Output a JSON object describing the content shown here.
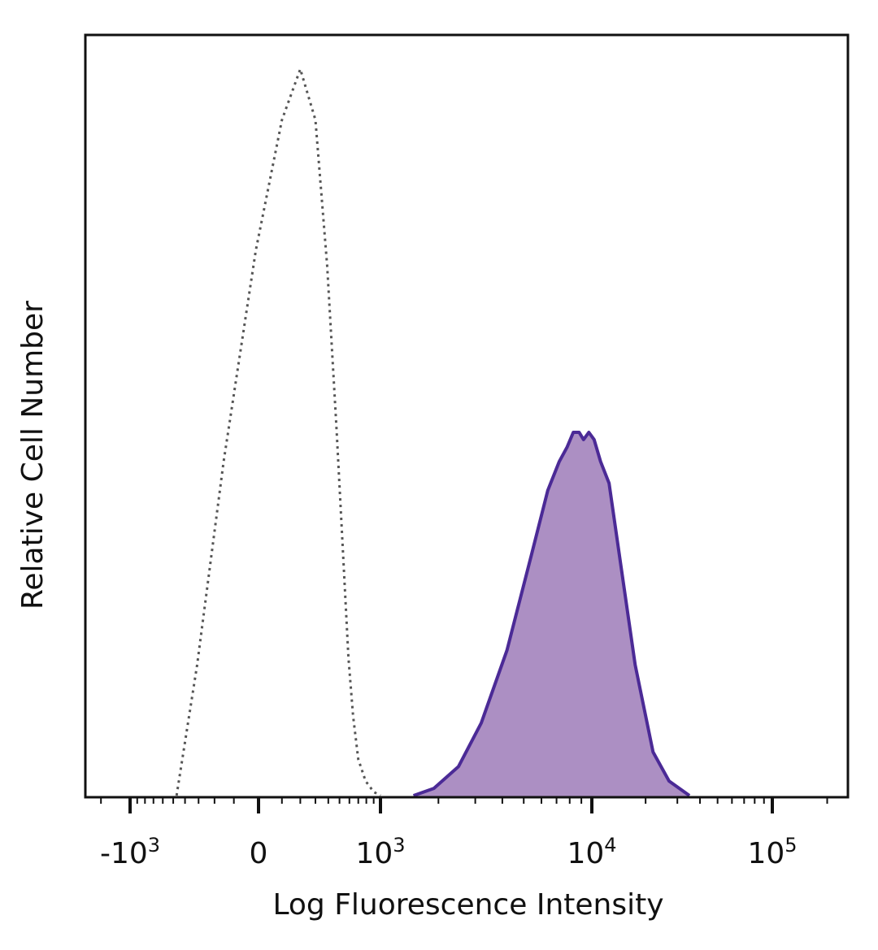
{
  "chart_data": {
    "type": "area",
    "xlabel": "Log Fluorescence Intensity",
    "ylabel": "Relative Cell Number",
    "x_scale": "biexponential",
    "xlim": [
      -1800,
      220000
    ],
    "ylim": [
      0,
      1.0
    ],
    "grid": false,
    "legend": "none",
    "x_ticks": [
      {
        "value": -1000,
        "base": "-10",
        "exp": "3"
      },
      {
        "value": 0,
        "base": "0",
        "exp": ""
      },
      {
        "value": 1000,
        "base": "10",
        "exp": "3"
      },
      {
        "value": 10000,
        "base": "10",
        "exp": "4"
      },
      {
        "value": 100000,
        "base": "10",
        "exp": "5"
      }
    ],
    "series": [
      {
        "style": "dotted",
        "color": "#555555",
        "fill": "none",
        "x": [
          -470,
          -310,
          -150,
          -10,
          100,
          200,
          300,
          390,
          470,
          540,
          590,
          640,
          700,
          790,
          900,
          1000
        ],
        "y": [
          0.0,
          0.18,
          0.46,
          0.75,
          0.93,
          1.0,
          0.93,
          0.73,
          0.51,
          0.32,
          0.19,
          0.11,
          0.05,
          0.02,
          0.005,
          0.0
        ]
      },
      {
        "style": "solid",
        "color": "#4b2a96",
        "fill": "#ac8fc3",
        "x": [
          1500,
          1900,
          2500,
          3200,
          4200,
          5400,
          6400,
          7200,
          7800,
          8300,
          8800,
          9200,
          9700,
          10300,
          11200,
          12500,
          14500,
          17500,
          22000,
          27000,
          35000
        ],
        "y": [
          0.0,
          0.01,
          0.04,
          0.1,
          0.2,
          0.33,
          0.42,
          0.46,
          0.48,
          0.5,
          0.5,
          0.49,
          0.5,
          0.49,
          0.46,
          0.43,
          0.32,
          0.18,
          0.06,
          0.02,
          0.0
        ]
      }
    ]
  }
}
